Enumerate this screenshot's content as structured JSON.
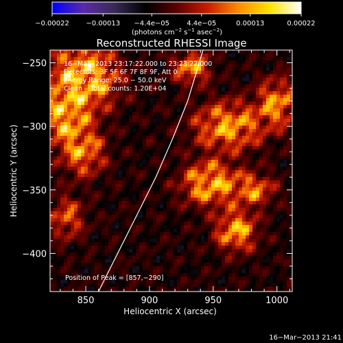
{
  "chart_data": {
    "type": "heatmap",
    "title": "Reconstructed RHESSI Image",
    "xlabel": "Heliocentric X (arcsec)",
    "ylabel": "Heliocentric Y (arcsec)",
    "xlim": [
      822,
      1012
    ],
    "ylim": [
      -430,
      -240
    ],
    "xticks": [
      850,
      900,
      950,
      1000
    ],
    "yticks": [
      -250,
      -300,
      -350,
      -400
    ],
    "xtick_labels": [
      "850",
      "900",
      "950",
      "1000"
    ],
    "ytick_labels": [
      "−250",
      "−300",
      "−350",
      "−400"
    ],
    "colorbar": {
      "range": [
        -0.00022,
        0.00022
      ],
      "ticks": [
        -0.00022,
        -0.00013,
        -4.4e-05,
        4.4e-05,
        0.00013,
        0.00022
      ],
      "tick_labels": [
        "−0.00022",
        "−0.00013",
        "−4.4e−05",
        "4.4e−05",
        "0.00013",
        "0.00022"
      ],
      "unit_prefix": "(photons cm",
      "unit_exp1": "−2",
      "unit_mid": " s",
      "unit_exp2": "−1",
      "unit_mid2": " asec",
      "unit_exp3": "−2",
      "unit_suffix": ")",
      "colors": [
        "#0000ff",
        "#5a2aa8",
        "#3a2a55",
        "#000000",
        "#5a0000",
        "#c81e00",
        "#ff8c00",
        "#ffe400",
        "#ffffff"
      ]
    },
    "annotations": {
      "time_range": "16−Mar−2013 23:17:22.000 to 23:23:22.000",
      "detectors": "Detectors: 3F 5F 6F 7F 8F 9F, Att 0",
      "energy": "Energy Range: 25.0 − 50.0 keV",
      "method": "Clean    Total counts: 1.20E+04",
      "peak": "Position of Peak = [857,−290]"
    },
    "limb_curve": [
      [
        860,
        -430
      ],
      [
        875,
        -400
      ],
      [
        890,
        -370
      ],
      [
        905,
        -340
      ],
      [
        918,
        -310
      ],
      [
        930,
        -280
      ],
      [
        942,
        -240
      ]
    ],
    "emission_regions": [
      {
        "x": 848,
        "y": -262,
        "sx": 16,
        "sy": 16,
        "amp": 1.15
      },
      {
        "x": 834,
        "y": -292,
        "sx": 11,
        "sy": 14,
        "amp": 0.95
      },
      {
        "x": 848,
        "y": -320,
        "sx": 11,
        "sy": 12,
        "amp": 0.7
      },
      {
        "x": 835,
        "y": -372,
        "sx": 9,
        "sy": 11,
        "amp": 0.5
      },
      {
        "x": 933,
        "y": -254,
        "sx": 9,
        "sy": 8,
        "amp": 0.75
      },
      {
        "x": 962,
        "y": -300,
        "sx": 17,
        "sy": 12,
        "amp": 0.85
      },
      {
        "x": 1000,
        "y": -282,
        "sx": 10,
        "sy": 12,
        "amp": 0.75
      },
      {
        "x": 948,
        "y": -345,
        "sx": 14,
        "sy": 11,
        "amp": 0.95
      },
      {
        "x": 982,
        "y": -350,
        "sx": 10,
        "sy": 8,
        "amp": 0.65
      },
      {
        "x": 968,
        "y": -382,
        "sx": 10,
        "sy": 10,
        "amp": 0.9
      }
    ]
  },
  "footer": {
    "timestamp": "16−Mar−2013 21:41"
  }
}
